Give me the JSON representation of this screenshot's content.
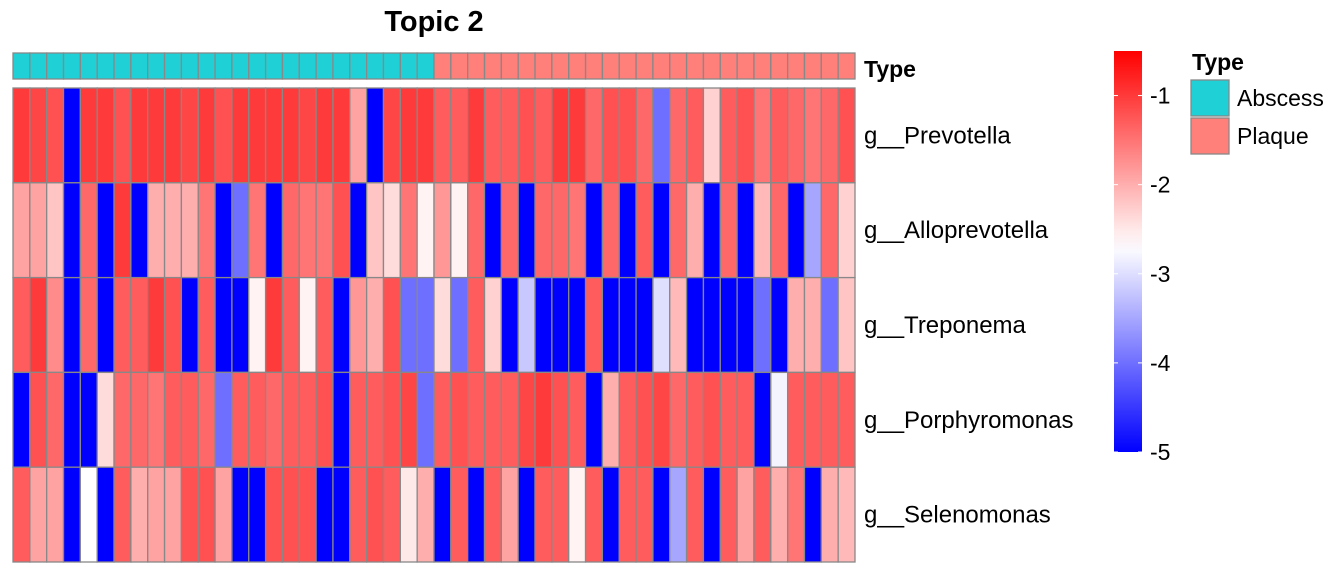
{
  "chart_data": {
    "type": "heatmap",
    "title": "Topic 2",
    "rows": [
      "g__Prevotella",
      "g__Alloprevotella",
      "g__Treponema",
      "g__Porphyromonas",
      "g__Selenomonas"
    ],
    "annotation": {
      "label": "Type",
      "values": [
        "Abscess",
        "Abscess",
        "Abscess",
        "Abscess",
        "Abscess",
        "Abscess",
        "Abscess",
        "Abscess",
        "Abscess",
        "Abscess",
        "Abscess",
        "Abscess",
        "Abscess",
        "Abscess",
        "Abscess",
        "Abscess",
        "Abscess",
        "Abscess",
        "Abscess",
        "Abscess",
        "Abscess",
        "Abscess",
        "Abscess",
        "Abscess",
        "Abscess",
        "Plaque",
        "Plaque",
        "Plaque",
        "Plaque",
        "Plaque",
        "Plaque",
        "Plaque",
        "Plaque",
        "Plaque",
        "Plaque",
        "Plaque",
        "Plaque",
        "Plaque",
        "Plaque",
        "Plaque",
        "Plaque",
        "Plaque",
        "Plaque",
        "Plaque",
        "Plaque",
        "Plaque",
        "Plaque",
        "Plaque",
        "Plaque",
        "Plaque"
      ]
    },
    "values": [
      [
        -1.0,
        -1.1,
        -1.2,
        -5.0,
        -1.0,
        -1.0,
        -1.2,
        -1.0,
        -1.0,
        -1.0,
        -1.1,
        -1.0,
        -1.2,
        -1.0,
        -1.0,
        -1.0,
        -1.0,
        -1.1,
        -1.0,
        -1.0,
        -1.9,
        -5.0,
        -1.1,
        -1.0,
        -1.0,
        -1.3,
        -1.3,
        -1.0,
        -1.3,
        -1.3,
        -1.2,
        -1.3,
        -1.0,
        -1.0,
        -1.4,
        -1.2,
        -1.2,
        -1.4,
        -4.0,
        -1.4,
        -1.3,
        -2.3,
        -1.3,
        -1.2,
        -1.5,
        -1.3,
        -1.4,
        -1.5,
        -1.4,
        -1.2
      ],
      [
        -1.9,
        -1.9,
        -2.2,
        -5.0,
        -1.4,
        -5.0,
        -1.0,
        -5.0,
        -2.0,
        -2.0,
        -2.0,
        -1.5,
        -5.0,
        -4.0,
        -1.5,
        -5.0,
        -1.4,
        -1.5,
        -1.5,
        -1.2,
        -5.0,
        -2.2,
        -2.4,
        -1.5,
        -2.6,
        -1.8,
        -2.6,
        -1.4,
        -5.0,
        -1.4,
        -5.0,
        -1.4,
        -1.4,
        -1.5,
        -5.0,
        -1.4,
        -5.0,
        -1.3,
        -5.0,
        -1.4,
        -2.0,
        -5.0,
        -1.4,
        -5.0,
        -2.1,
        -1.4,
        -5.0,
        -3.5,
        -1.4,
        -2.3
      ],
      [
        -1.3,
        -1.0,
        -1.7,
        -5.0,
        -1.4,
        -5.0,
        -1.3,
        -1.3,
        -1.0,
        -1.2,
        -5.0,
        -1.3,
        -5.0,
        -5.0,
        -2.6,
        -1.0,
        -1.3,
        -2.6,
        -1.3,
        -5.0,
        -1.8,
        -2.0,
        -1.2,
        -4.0,
        -4.0,
        -2.4,
        -4.0,
        -1.3,
        -2.3,
        -5.0,
        -3.2,
        -5.0,
        -5.0,
        -5.0,
        -1.3,
        -5.0,
        -5.0,
        -5.0,
        -3.0,
        -2.1,
        -5.0,
        -5.0,
        -5.0,
        -5.0,
        -4.0,
        -5.0,
        -2.0,
        -2.0,
        -4.0,
        -2.2
      ],
      [
        -5.0,
        -1.2,
        -1.4,
        -5.0,
        -5.0,
        -2.4,
        -1.4,
        -1.4,
        -1.5,
        -1.3,
        -1.3,
        -1.4,
        -4.0,
        -1.3,
        -1.3,
        -1.4,
        -1.3,
        -1.3,
        -1.2,
        -5.0,
        -1.3,
        -1.3,
        -1.2,
        -1.1,
        -4.0,
        -1.3,
        -1.2,
        -1.3,
        -1.3,
        -1.3,
        -1.1,
        -1.0,
        -1.2,
        -1.3,
        -5.0,
        -2.0,
        -1.3,
        -1.2,
        -1.1,
        -1.4,
        -1.3,
        -1.2,
        -1.3,
        -1.3,
        -5.0,
        -2.8,
        -1.3,
        -1.3,
        -1.3,
        -1.3
      ],
      [
        -1.3,
        -1.9,
        -1.9,
        -5.0,
        -2.7,
        -5.0,
        -1.3,
        -2.0,
        -1.9,
        -1.9,
        -1.2,
        -1.2,
        -1.9,
        -5.0,
        -5.0,
        -1.2,
        -1.2,
        -1.2,
        -5.0,
        -5.0,
        -1.3,
        -1.2,
        -1.3,
        -2.5,
        -2.0,
        -5.0,
        -1.3,
        -5.0,
        -1.3,
        -1.9,
        -5.0,
        -1.3,
        -1.3,
        -2.6,
        -1.3,
        -5.0,
        -1.3,
        -1.3,
        -5.0,
        -3.5,
        -1.3,
        -5.0,
        -1.3,
        -1.9,
        -1.3,
        -2.0,
        -1.5,
        -5.0,
        -2.0,
        -2.1
      ]
    ],
    "color_scale": {
      "min": -5,
      "max": -0.5,
      "mid": -2.7,
      "low_color": "#0000FF",
      "mid_color": "#FFFFFF",
      "high_color": "#FF0000",
      "ticks": [
        -1,
        -2,
        -3,
        -4,
        -5
      ]
    },
    "legend": {
      "title": "Type",
      "entries": [
        {
          "label": "Abscess",
          "color": "#1FD1D6"
        },
        {
          "label": "Plaque",
          "color": "#FF7F7A"
        }
      ]
    },
    "grid_color": "#888888"
  }
}
